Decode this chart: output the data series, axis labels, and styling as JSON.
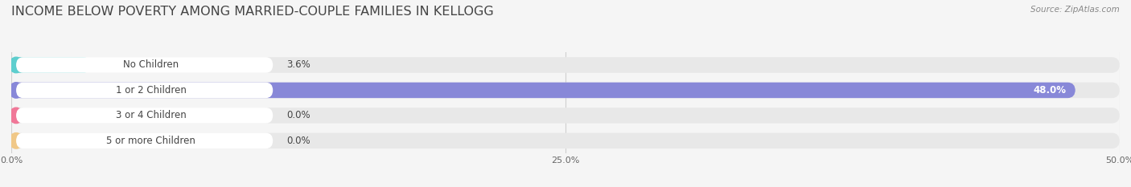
{
  "title": "INCOME BELOW POVERTY AMONG MARRIED-COUPLE FAMILIES IN KELLOGG",
  "source": "Source: ZipAtlas.com",
  "categories": [
    "No Children",
    "1 or 2 Children",
    "3 or 4 Children",
    "5 or more Children"
  ],
  "values": [
    3.6,
    48.0,
    0.0,
    0.0
  ],
  "value_labels": [
    "3.6%",
    "48.0%",
    "0.0%",
    "0.0%"
  ],
  "bar_colors": [
    "#5ecece",
    "#8888d8",
    "#f07898",
    "#f0c888"
  ],
  "track_color": "#e8e8e8",
  "xlim": [
    0,
    50.0
  ],
  "xticks": [
    0.0,
    25.0,
    50.0
  ],
  "xticklabels": [
    "0.0%",
    "25.0%",
    "50.0%"
  ],
  "title_fontsize": 11.5,
  "label_fontsize": 8.5,
  "value_fontsize": 8.5,
  "background_color": "#f5f5f5",
  "text_color": "#444444",
  "source_color": "#888888",
  "grid_color": "#d0d0d0",
  "value_inside_threshold": 5.0
}
